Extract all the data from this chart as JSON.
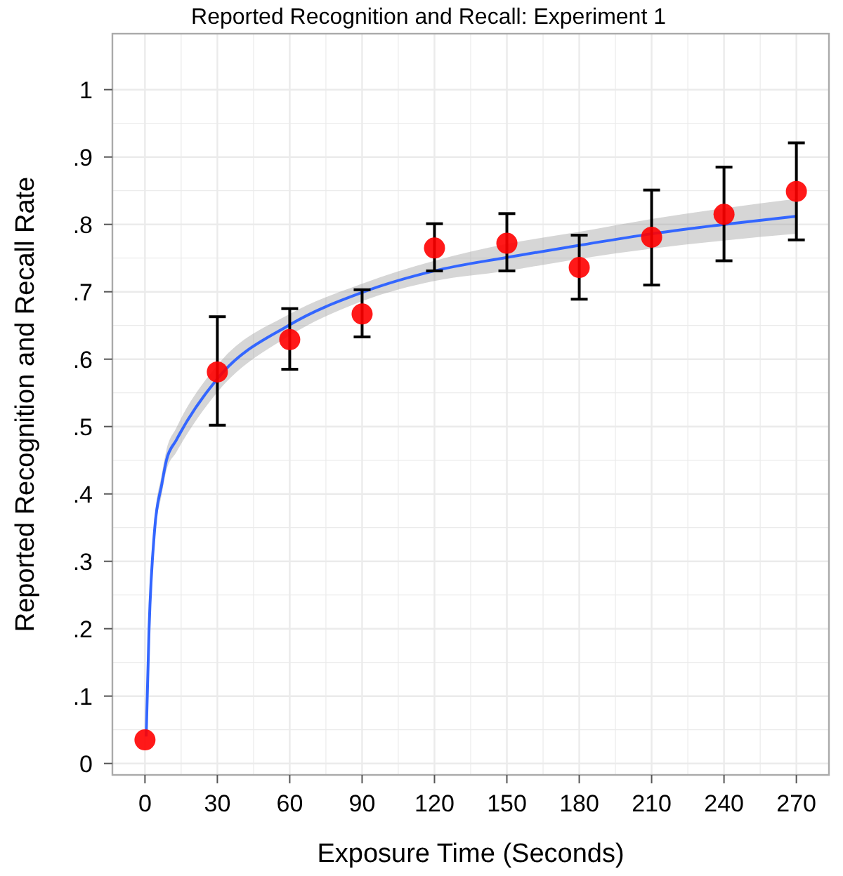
{
  "chart_data": {
    "type": "scatter",
    "title": "Reported Recognition and Recall: Experiment 1",
    "xlabel": "Exposure Time (Seconds)",
    "ylabel": "Reported Recognition and Recall Rate",
    "xlim": [
      -13.5,
      283.5
    ],
    "xticks": [
      0,
      30,
      60,
      90,
      120,
      150,
      180,
      210,
      240,
      270
    ],
    "ylim": [
      -0.017,
      1.083
    ],
    "yticks": [
      0,
      {
        "value": 0.1,
        "label": ".1"
      },
      {
        "value": 0.2,
        "label": ".2"
      },
      {
        "value": 0.3,
        "label": ".3"
      },
      {
        "value": 0.4,
        "label": ".4"
      },
      {
        "value": 0.5,
        "label": ".5"
      },
      {
        "value": 0.6,
        "label": ".6"
      },
      {
        "value": 0.7,
        "label": ".7"
      },
      {
        "value": 0.8,
        "label": ".8"
      },
      {
        "value": 0.9,
        "label": ".9"
      },
      1
    ],
    "grid": true,
    "marker": "circle",
    "series": [
      {
        "type": "line",
        "color": "#3366ff",
        "line_style": "solid",
        "marker": "none",
        "x": [
          0.5,
          1.7,
          4,
          7,
          8.9,
          13,
          30,
          60,
          90,
          120,
          150,
          180,
          210,
          240,
          270
        ],
        "values": [
          0.04,
          0.2,
          0.347,
          0.415,
          0.45,
          0.48,
          0.571,
          0.651,
          0.699,
          0.731,
          0.751,
          0.769,
          0.786,
          0.8,
          0.812
        ],
        "lower": [
          0.03,
          0.19,
          0.335,
          0.4,
          0.435,
          0.462,
          0.551,
          0.635,
          0.686,
          0.716,
          0.731,
          0.749,
          0.764,
          0.776,
          0.786
        ],
        "upper": [
          0.05,
          0.21,
          0.359,
          0.43,
          0.465,
          0.498,
          0.591,
          0.667,
          0.712,
          0.746,
          0.771,
          0.789,
          0.808,
          0.824,
          0.838
        ]
      },
      {
        "color": "#ff0000",
        "x": [
          0,
          30,
          60,
          90,
          120,
          150,
          180,
          210,
          240,
          270
        ],
        "values": [
          0.035,
          0.581,
          0.629,
          0.667,
          0.765,
          0.772,
          0.736,
          0.781,
          0.815,
          0.849
        ],
        "errors": [
          null,
          [
            0.502,
            0.663
          ],
          [
            0.585,
            0.675
          ],
          [
            0.633,
            0.703
          ],
          [
            0.731,
            0.801
          ],
          [
            0.731,
            0.816
          ],
          [
            0.689,
            0.784
          ],
          [
            0.71,
            0.851
          ],
          [
            0.746,
            0.885
          ],
          [
            0.777,
            0.921
          ]
        ]
      }
    ]
  }
}
